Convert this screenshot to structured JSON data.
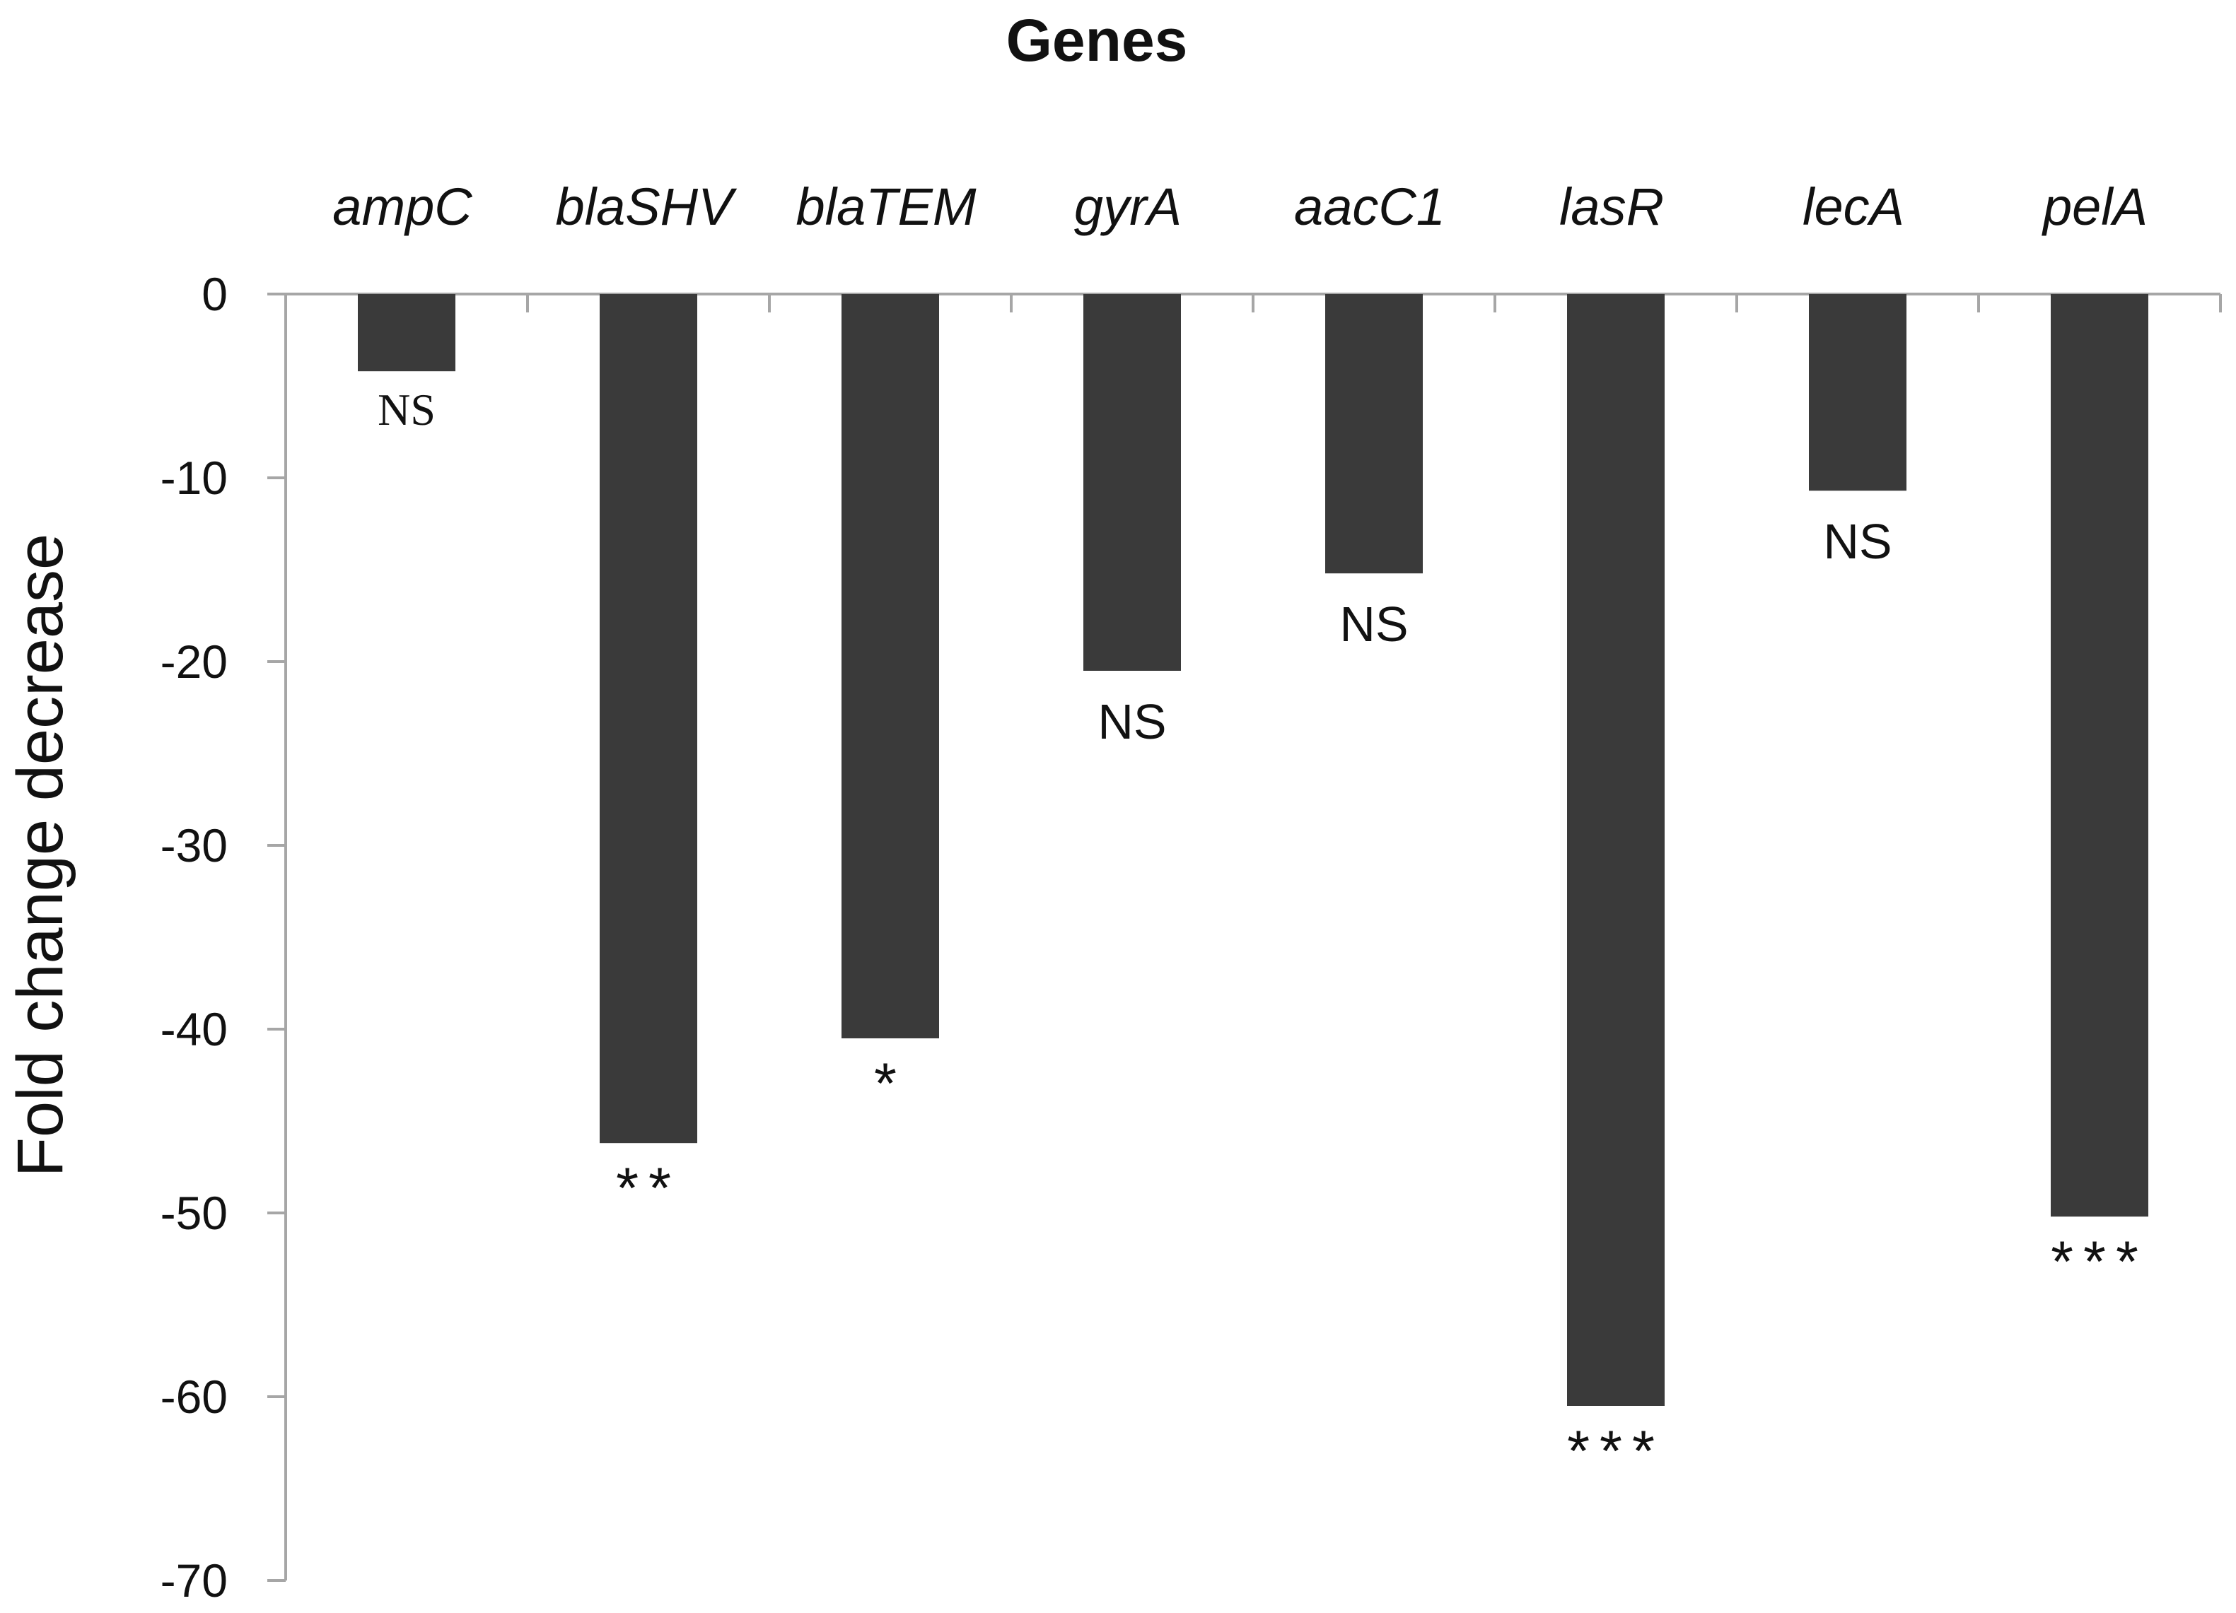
{
  "chart_data": {
    "type": "bar",
    "title": "Genes",
    "xlabel": "",
    "ylabel": "Fold change decrease",
    "categories": [
      "ampC",
      "blaSHV",
      "blaTEM",
      "gyrA",
      "aacC1",
      "lasR",
      "lecA",
      "pelA"
    ],
    "values": [
      -4.2,
      -46.2,
      -40.5,
      -20.5,
      -15.2,
      -60.5,
      -10.7,
      -50.2
    ],
    "significance": [
      "NS",
      "**",
      "*",
      "NS",
      "NS",
      "***",
      "NS",
      "***"
    ],
    "ylim": [
      -70,
      0
    ],
    "yticks": [
      0,
      -10,
      -20,
      -30,
      -40,
      -50,
      -60,
      -70
    ],
    "ytick_labels": [
      "0",
      "-10",
      "-20",
      "-30",
      "-40",
      "-50",
      "-60",
      "-70"
    ],
    "x_axis_position": "top",
    "grid": false,
    "legend": "none",
    "colors": {
      "bar": "#3a3a3a",
      "axis": "#a6a6a6",
      "text": "#111111"
    }
  }
}
